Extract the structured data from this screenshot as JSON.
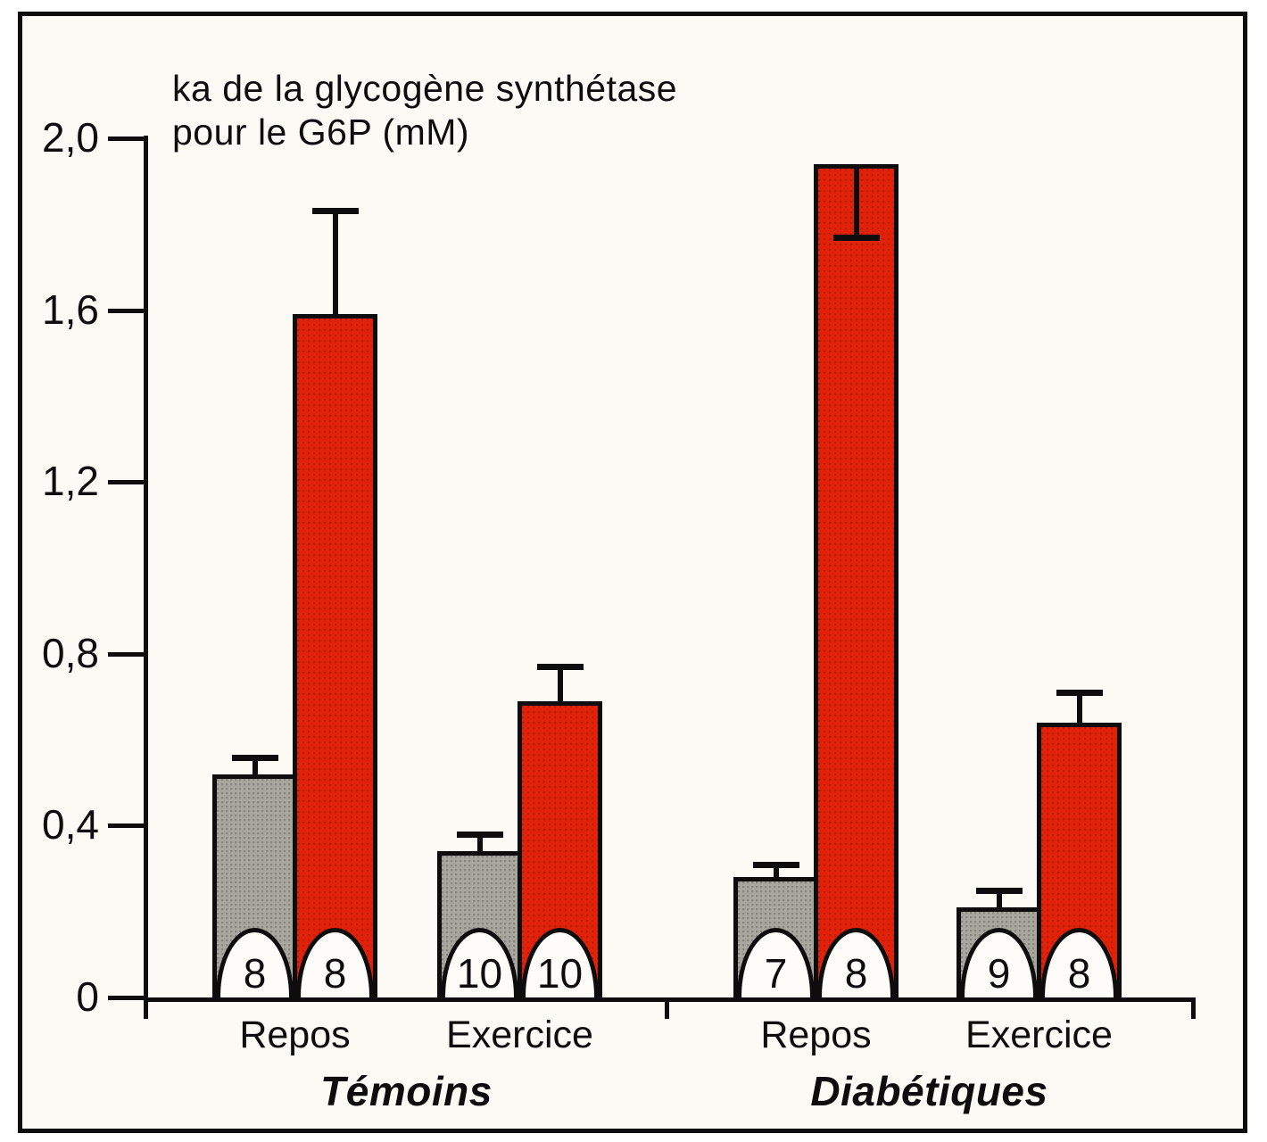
{
  "figure": {
    "title_line1": "ka de la glycogène synthétase",
    "title_line2": "pour le G6P (mM)"
  },
  "chart_data": {
    "type": "bar",
    "title": "ka de la glycogène synthétase pour le G6P (mM)",
    "ylabel": "ka de la glycogène synthétase pour le G6P (mM)",
    "xlabel": "",
    "ylim": [
      0,
      2.0
    ],
    "grid": false,
    "legend": "none",
    "yticks": [
      {
        "value": 2.0,
        "label": "2,0"
      },
      {
        "value": 1.6,
        "label": "1,6"
      },
      {
        "value": 1.2,
        "label": "1,2"
      },
      {
        "value": 0.8,
        "label": "0,8"
      },
      {
        "value": 0.4,
        "label": "0,4"
      },
      {
        "value": 0.0,
        "label": "0"
      }
    ],
    "series": [
      {
        "name": "gris",
        "color": "#a7a69f"
      },
      {
        "name": "rouge",
        "color": "#e0220a"
      }
    ],
    "sections": [
      {
        "label": "Témoins",
        "categories": [
          "Repos",
          "Exercice"
        ]
      },
      {
        "label": "Diabétiques",
        "categories": [
          "Repos",
          "Exercice"
        ]
      }
    ],
    "groups": [
      {
        "section": "Témoins",
        "category": "Repos",
        "bars": [
          {
            "series": "gris",
            "value": 0.52,
            "error": 0.04,
            "error_direction": "up",
            "n": 8
          },
          {
            "series": "rouge",
            "value": 1.59,
            "error": 0.24,
            "error_direction": "up",
            "n": 8
          }
        ]
      },
      {
        "section": "Témoins",
        "category": "Exercice",
        "bars": [
          {
            "series": "gris",
            "value": 0.34,
            "error": 0.04,
            "error_direction": "up",
            "n": 10
          },
          {
            "series": "rouge",
            "value": 0.69,
            "error": 0.08,
            "error_direction": "up",
            "n": 10
          }
        ]
      },
      {
        "section": "Diabétiques",
        "category": "Repos",
        "bars": [
          {
            "series": "gris",
            "value": 0.28,
            "error": 0.03,
            "error_direction": "up",
            "n": 7
          },
          {
            "series": "rouge",
            "value": 1.94,
            "error": 0.17,
            "error_direction": "down",
            "n": 8
          }
        ]
      },
      {
        "section": "Diabétiques",
        "category": "Exercice",
        "bars": [
          {
            "series": "gris",
            "value": 0.21,
            "error": 0.04,
            "error_direction": "up",
            "n": 9
          },
          {
            "series": "rouge",
            "value": 0.64,
            "error": 0.07,
            "error_direction": "up",
            "n": 8
          }
        ]
      }
    ]
  }
}
